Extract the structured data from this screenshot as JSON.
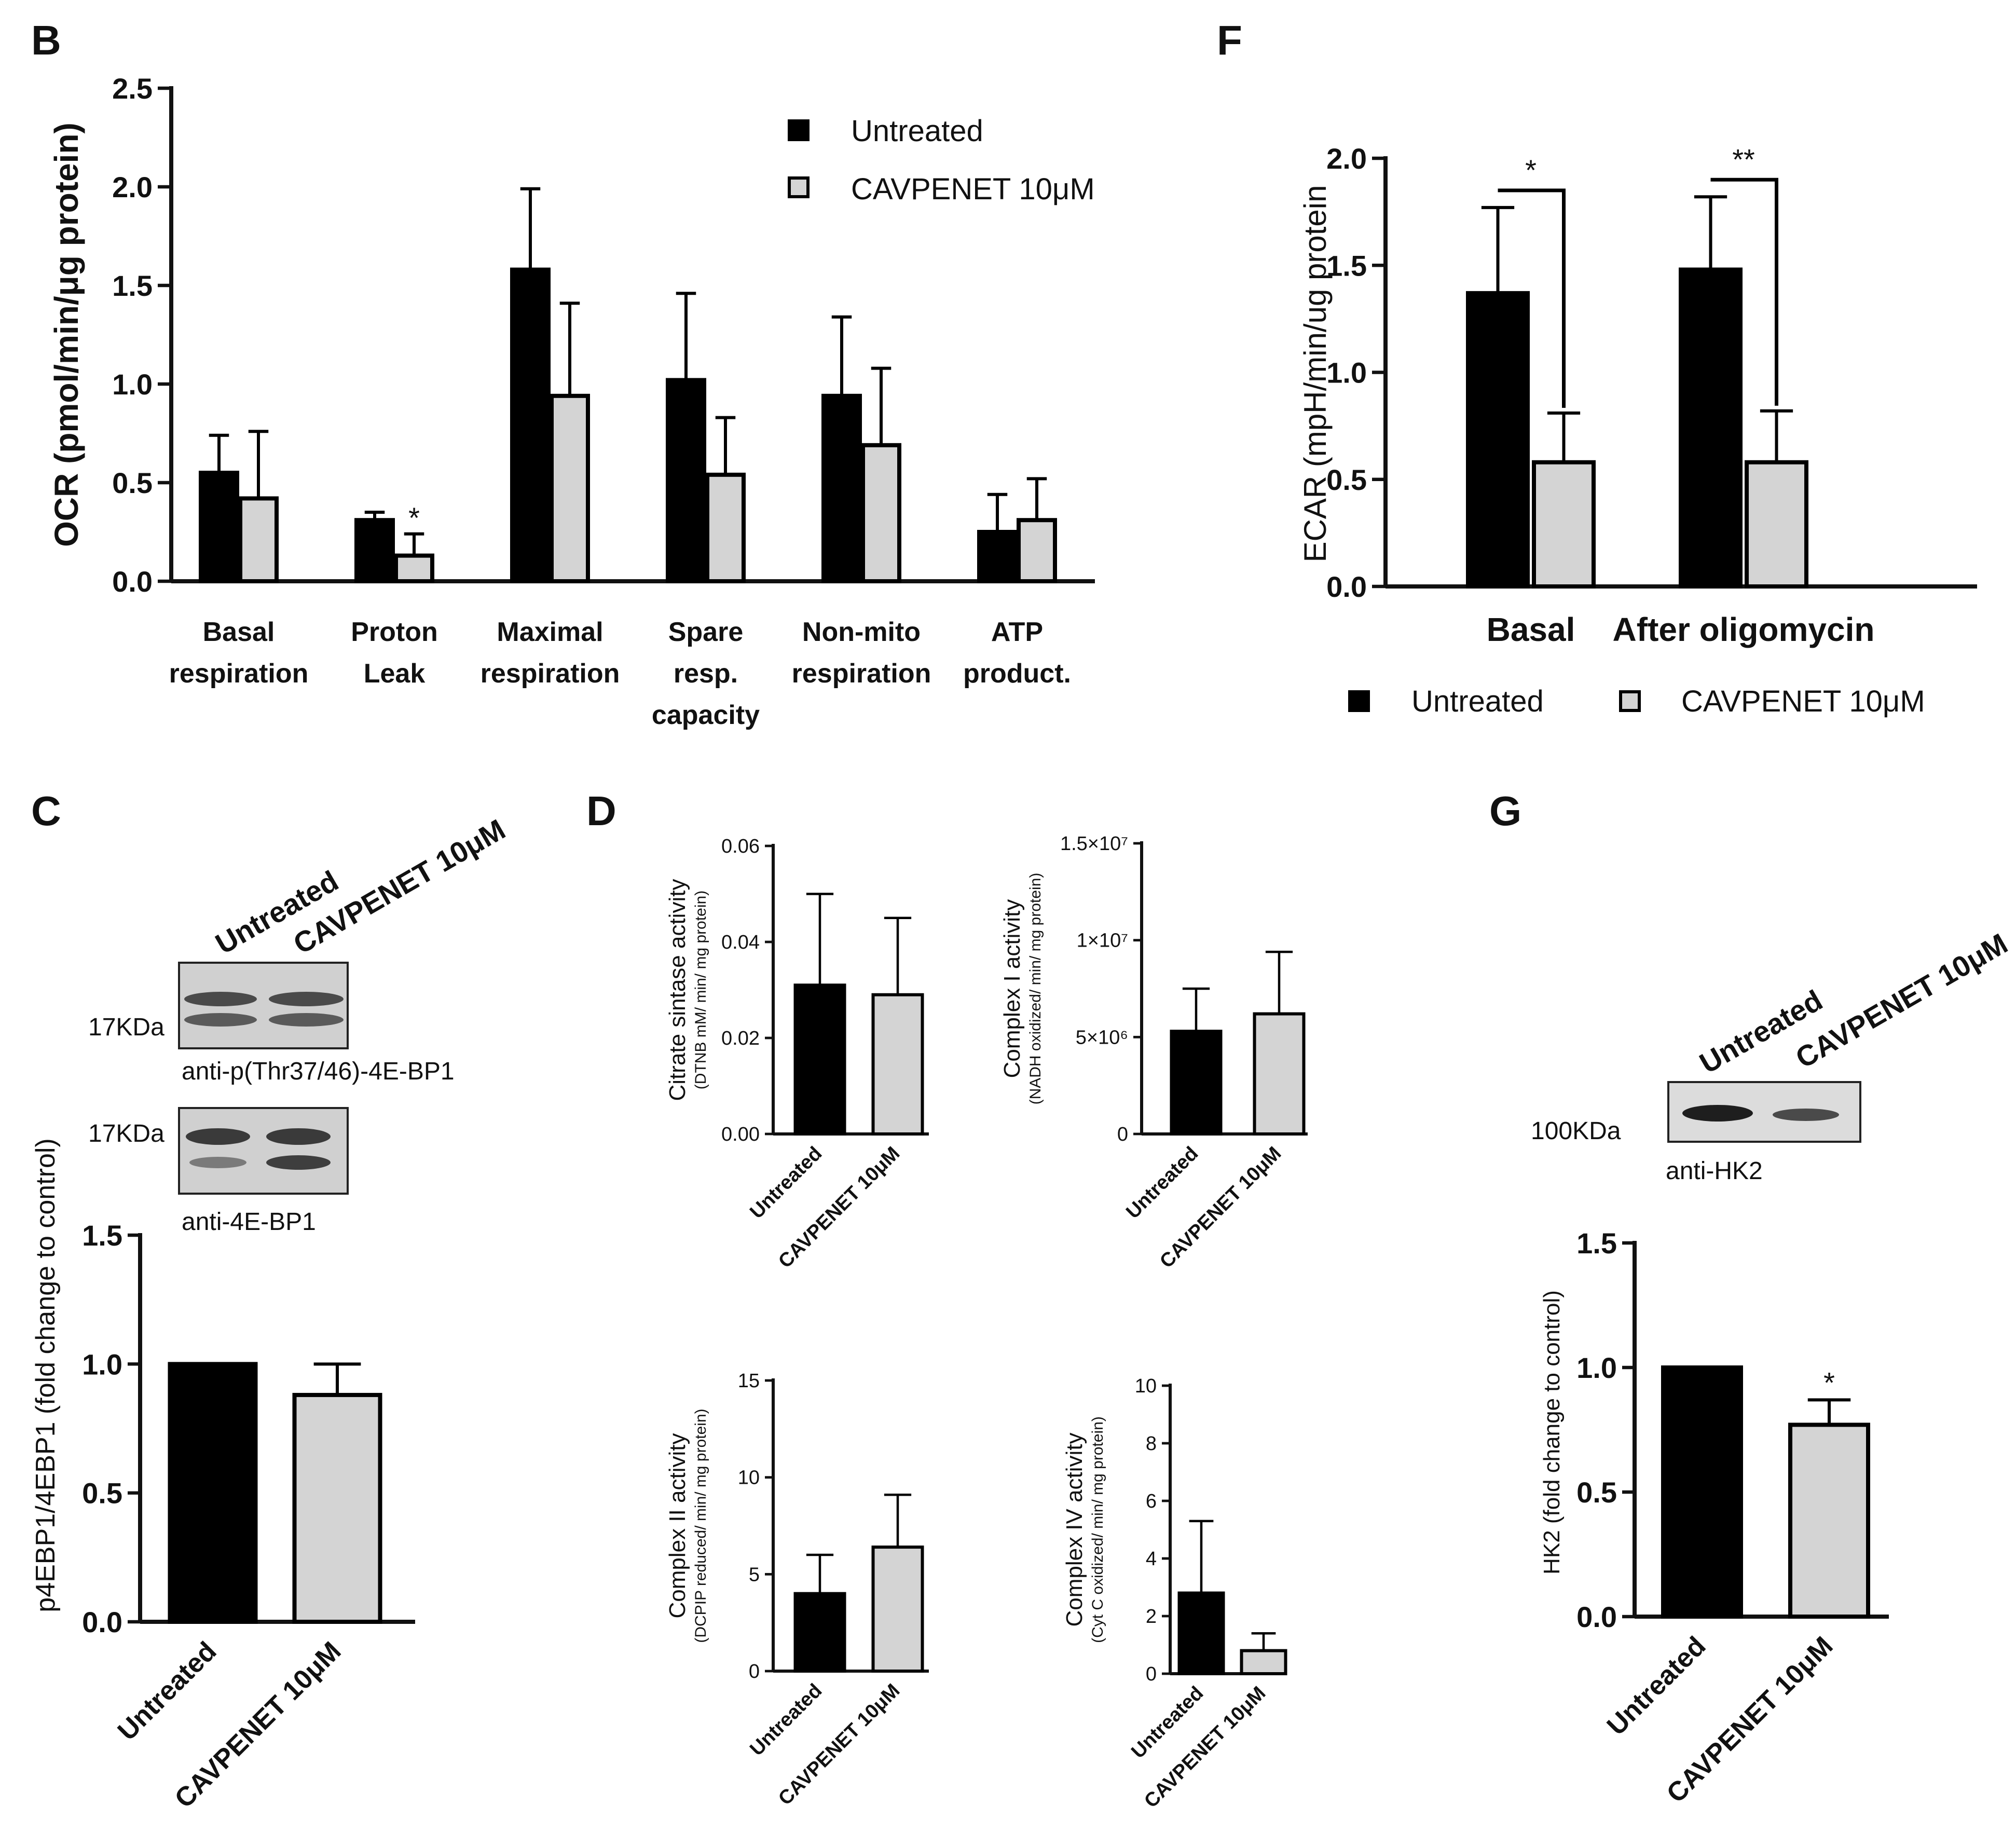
{
  "colors": {
    "untreated": "#000000",
    "cavpenet": "#d4d4d4",
    "axis": "#111111"
  },
  "panels": {
    "B": "B",
    "C": "C",
    "D": "D",
    "F": "F",
    "G": "G"
  },
  "legend": {
    "untreated": "Untreated",
    "cavpenet": "CAVPENET 10μM"
  },
  "blots": {
    "c_untreated": "Untreated",
    "c_cavpenet": "CAVPENET 10μM",
    "c_kda1": "17KDa",
    "c_kda2": "17KDa",
    "c_anti1": "anti-p(Thr37/46)-4E-BP1",
    "c_anti2": "anti-4E-BP1",
    "g_untreated": "Untreated",
    "g_cavpenet": "CAVPENET 10μM",
    "g_kda": "100KDa",
    "g_anti": "anti-HK2"
  },
  "chart_data": [
    {
      "id": "B",
      "type": "bar",
      "ylabel": "OCR (pmol/min/μg protein)",
      "ylim": [
        0,
        2.5
      ],
      "yticks": [
        "0.0",
        "0.5",
        "1.0",
        "1.5",
        "2.0",
        "2.5"
      ],
      "categories": [
        [
          "Basal",
          "respiration"
        ],
        [
          "Proton",
          "Leak"
        ],
        [
          "Maximal",
          "respiration"
        ],
        [
          "Spare",
          "resp.",
          "capacity"
        ],
        [
          "Non-mito",
          "respiration"
        ],
        [
          "ATP",
          "product."
        ]
      ],
      "series": [
        {
          "name": "Untreated",
          "values": [
            0.55,
            0.31,
            1.58,
            1.02,
            0.94,
            0.25
          ],
          "errors": [
            0.19,
            0.04,
            0.41,
            0.44,
            0.4,
            0.19
          ]
        },
        {
          "name": "CAVPENET 10μM",
          "values": [
            0.42,
            0.13,
            0.94,
            0.54,
            0.69,
            0.31
          ],
          "errors": [
            0.34,
            0.11,
            0.47,
            0.29,
            0.39,
            0.21
          ]
        }
      ],
      "annotations": [
        {
          "category": 1,
          "series": 1,
          "text": "*"
        }
      ]
    },
    {
      "id": "F",
      "type": "bar",
      "ylabel": "ECAR (mpH/min/ug protein",
      "ylim": [
        0,
        2.0
      ],
      "yticks": [
        "0.0",
        "0.5",
        "1.0",
        "1.5",
        "2.0"
      ],
      "categories": [
        [
          "Basal"
        ],
        [
          "After oligomycin"
        ]
      ],
      "series": [
        {
          "name": "Untreated",
          "values": [
            1.37,
            1.48
          ],
          "errors": [
            0.4,
            0.34
          ]
        },
        {
          "name": "CAVPENET 10μM",
          "values": [
            0.58,
            0.58
          ],
          "errors": [
            0.23,
            0.24
          ]
        }
      ],
      "annotations": [
        {
          "category": 0,
          "text": "*"
        },
        {
          "category": 1,
          "text": "**"
        }
      ]
    },
    {
      "id": "C",
      "type": "bar",
      "ylabel": "p4EBP1/4EBP1 (fold change to control)",
      "ylim": [
        0,
        1.5
      ],
      "yticks": [
        "0.0",
        "0.5",
        "1.0",
        "1.5"
      ],
      "categories": [
        "Untreated",
        "CAVPENET 10μM"
      ],
      "values": [
        1.0,
        0.88
      ],
      "errors": [
        0,
        0.12
      ]
    },
    {
      "id": "D1",
      "type": "bar",
      "ylabel": "Citrate sintase activity",
      "ylabel_sub": "(DTNB mM/ min/ mg protein)",
      "ylim": [
        0,
        0.06
      ],
      "yticks": [
        "0.00",
        "0.02",
        "0.04",
        "0.06"
      ],
      "categories": [
        "Untreated",
        "CAVPENET 10μM"
      ],
      "values": [
        0.031,
        0.029
      ],
      "errors": [
        0.019,
        0.016
      ]
    },
    {
      "id": "D2",
      "type": "bar",
      "ylabel": "Complex I activity",
      "ylabel_sub": "(NADH oxidized/ min/ mg protein)",
      "ylim": [
        0,
        15000000
      ],
      "yticks": [
        "0",
        "5×10⁶",
        "1×10⁷",
        "1.5×10⁷"
      ],
      "categories": [
        "Untreated",
        "CAVPENET 10μM"
      ],
      "values": [
        5300000,
        6200000
      ],
      "errors": [
        2200000,
        3200000
      ]
    },
    {
      "id": "D3",
      "type": "bar",
      "ylabel": "Complex II activity",
      "ylabel_sub": "(DCPIP reduced/ min/ mg protein)",
      "ylim": [
        0,
        15
      ],
      "yticks": [
        "0",
        "5",
        "10",
        "15"
      ],
      "categories": [
        "Untreated",
        "CAVPENET 10μM"
      ],
      "values": [
        4.0,
        6.4
      ],
      "errors": [
        2.0,
        2.7
      ]
    },
    {
      "id": "D4",
      "type": "bar",
      "ylabel": "Complex IV activity",
      "ylabel_sub": "(Cyt C oxidized/ min/ mg protein)",
      "ylim": [
        0,
        10
      ],
      "yticks": [
        "0",
        "2",
        "4",
        "6",
        "8",
        "10"
      ],
      "categories": [
        "Untreated",
        "CAVPENET 10μM"
      ],
      "values": [
        2.8,
        0.8
      ],
      "errors": [
        2.5,
        0.6
      ]
    },
    {
      "id": "G",
      "type": "bar",
      "ylabel": "HK2 (fold change to control)",
      "ylim": [
        0,
        1.5
      ],
      "yticks": [
        "0.0",
        "0.5",
        "1.0",
        "1.5"
      ],
      "categories": [
        "Untreated",
        "CAVPENET 10μM"
      ],
      "values": [
        1.0,
        0.77
      ],
      "errors": [
        0,
        0.1
      ],
      "annotations": [
        {
          "category": 1,
          "text": "*"
        }
      ]
    }
  ]
}
